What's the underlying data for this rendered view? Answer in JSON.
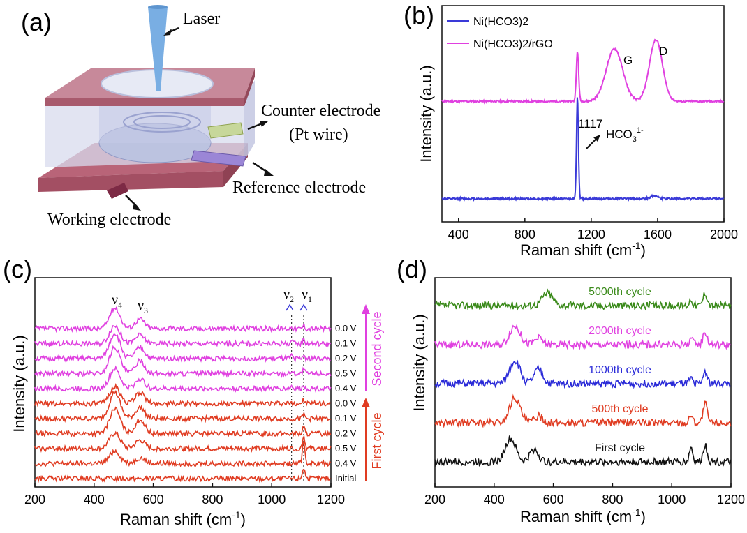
{
  "panels": {
    "a": {
      "letter": "(a)",
      "labels": {
        "laser": "Laser",
        "counter_line1": "Counter electrode",
        "counter_line2": "(Pt wire)",
        "reference": "Reference electrode",
        "working": "Working electrode"
      },
      "colors": {
        "slab": "#b35a70",
        "slab_top": "#c98a9b",
        "cell": "#c9cde6",
        "laser": "#7fb2e6"
      }
    },
    "b": {
      "letter": "(b)",
      "peak_labels": {
        "g": "G",
        "d": "D",
        "p1117": "1117",
        "hco3": "HCO3 1-"
      }
    },
    "c": {
      "letter": "(c)",
      "peak_labels": {
        "v4": "ν4",
        "v3": "ν3",
        "v2": "ν2",
        "v1": "ν1"
      },
      "cycle_labels": {
        "second": "Second cycle",
        "first": "First cycle"
      }
    },
    "d": {
      "letter": "(d)"
    }
  },
  "chart_data": [
    {
      "id": "b",
      "type": "line",
      "title": "",
      "xlabel": "Raman shift (cm-1)",
      "ylabel": "Intensity (a.u.)",
      "xlim": [
        300,
        2000
      ],
      "xticks": [
        400,
        800,
        1200,
        1600,
        2000
      ],
      "legend": "top-left",
      "series": [
        {
          "name": "Ni(HCO3)2/rGO",
          "color": "#e040e0",
          "baseline": 6.3,
          "peaks": [
            [
              1117,
              3.2,
              10
            ],
            [
              1340,
              3.4,
              70
            ],
            [
              1590,
              4.0,
              55
            ]
          ]
        },
        {
          "name": "Ni(HCO3)2",
          "color": "#3a3ad8",
          "baseline": 0.0,
          "peaks": [
            [
              1117,
              6.6,
              8
            ],
            [
              1580,
              0.2,
              30
            ]
          ]
        }
      ]
    },
    {
      "id": "c",
      "type": "line",
      "title": "",
      "xlabel": "Raman shift (cm-1)",
      "ylabel": "Intensity (a.u.)",
      "xlim": [
        200,
        1200
      ],
      "xticks": [
        200,
        400,
        600,
        800,
        1000,
        1200
      ],
      "dotted_lines": [
        1067,
        1108
      ],
      "series": [
        {
          "name": "0.0 V",
          "color": "#e040e0",
          "offset": 10,
          "peaks": [
            [
              470,
              1.5,
              25
            ],
            [
              555,
              0.7,
              22
            ],
            [
              1067,
              0.2,
              4
            ],
            [
              1108,
              0.25,
              5
            ]
          ]
        },
        {
          "name": "0.1 V",
          "color": "#e040e0",
          "offset": 9,
          "peaks": [
            [
              470,
              1.3,
              25
            ],
            [
              555,
              0.6,
              22
            ],
            [
              1067,
              0.2,
              4
            ],
            [
              1108,
              0.3,
              5
            ]
          ]
        },
        {
          "name": "0.2 V",
          "color": "#e040e0",
          "offset": 8,
          "peaks": [
            [
              470,
              1.8,
              25
            ],
            [
              555,
              0.8,
              22
            ],
            [
              1067,
              0.2,
              4
            ],
            [
              1108,
              0.25,
              5
            ]
          ]
        },
        {
          "name": "0.5 V",
          "color": "#e040e0",
          "offset": 7,
          "peaks": [
            [
              470,
              1.9,
              25
            ],
            [
              555,
              0.9,
              22
            ],
            [
              1067,
              0.2,
              4
            ],
            [
              1108,
              0.3,
              5
            ]
          ]
        },
        {
          "name": "0.4 V",
          "color": "#e040e0",
          "offset": 6,
          "peaks": [
            [
              470,
              1.4,
              25
            ],
            [
              555,
              0.7,
              22
            ],
            [
              1067,
              0.2,
              4
            ],
            [
              1108,
              0.25,
              5
            ]
          ]
        },
        {
          "name": "0.0 V",
          "color": "#e03c22",
          "offset": 5,
          "peaks": [
            [
              470,
              1.2,
              25
            ],
            [
              555,
              0.8,
              22
            ],
            [
              1108,
              0.3,
              5
            ]
          ]
        },
        {
          "name": "0.1 V",
          "color": "#e03c22",
          "offset": 4,
          "peaks": [
            [
              470,
              1.9,
              25
            ],
            [
              555,
              0.8,
              22
            ],
            [
              1108,
              0.3,
              5
            ]
          ]
        },
        {
          "name": "0.2 V",
          "color": "#e03c22",
          "offset": 3,
          "peaks": [
            [
              470,
              1.8,
              25
            ],
            [
              555,
              1.0,
              22
            ],
            [
              1108,
              0.5,
              5
            ]
          ]
        },
        {
          "name": "0.5 V",
          "color": "#e03c22",
          "offset": 2,
          "peaks": [
            [
              470,
              1.1,
              25
            ],
            [
              555,
              0.6,
              22
            ],
            [
              1108,
              0.9,
              6
            ]
          ]
        },
        {
          "name": "0.4 V",
          "color": "#e03c22",
          "offset": 1,
          "peaks": [
            [
              470,
              0.9,
              25
            ],
            [
              555,
              0.4,
              22
            ],
            [
              1108,
              1.6,
              6
            ]
          ]
        },
        {
          "name": "Initial",
          "color": "#e03c22",
          "offset": 0,
          "peaks": [
            [
              1108,
              0.8,
              6
            ]
          ]
        }
      ]
    },
    {
      "id": "d",
      "type": "line",
      "title": "",
      "xlabel": "Raman shift (cm-1)",
      "ylabel": "Intensity (a.u.)",
      "xlim": [
        200,
        1200
      ],
      "xticks": [
        200,
        400,
        600,
        800,
        1000,
        1200
      ],
      "series": [
        {
          "name": "5000th cycle",
          "color": "#3a8a1a",
          "offset": 4,
          "peaks": [
            [
              580,
              0.6,
              25
            ],
            [
              1065,
              0.3,
              8
            ],
            [
              1113,
              0.6,
              10
            ]
          ]
        },
        {
          "name": "2000th cycle",
          "color": "#e040e0",
          "offset": 3,
          "peaks": [
            [
              470,
              0.9,
              25
            ],
            [
              550,
              0.3,
              20
            ],
            [
              1065,
              0.3,
              8
            ],
            [
              1113,
              0.6,
              10
            ]
          ]
        },
        {
          "name": "1000th cycle",
          "color": "#2a2ad8",
          "offset": 2,
          "peaks": [
            [
              470,
              1.1,
              25
            ],
            [
              550,
              0.7,
              20
            ],
            [
              1065,
              0.2,
              8
            ],
            [
              1113,
              0.6,
              10
            ]
          ]
        },
        {
          "name": "500th cycle",
          "color": "#e03c22",
          "offset": 1,
          "peaks": [
            [
              470,
              1.2,
              25
            ],
            [
              550,
              0.3,
              20
            ],
            [
              1065,
              0.4,
              8
            ],
            [
              1113,
              0.9,
              10
            ]
          ]
        },
        {
          "name": "First cycle",
          "color": "#111111",
          "offset": 0,
          "peaks": [
            [
              455,
              1.1,
              25
            ],
            [
              535,
              0.6,
              20
            ],
            [
              1065,
              0.7,
              8
            ],
            [
              1113,
              0.8,
              10
            ]
          ]
        }
      ]
    }
  ]
}
